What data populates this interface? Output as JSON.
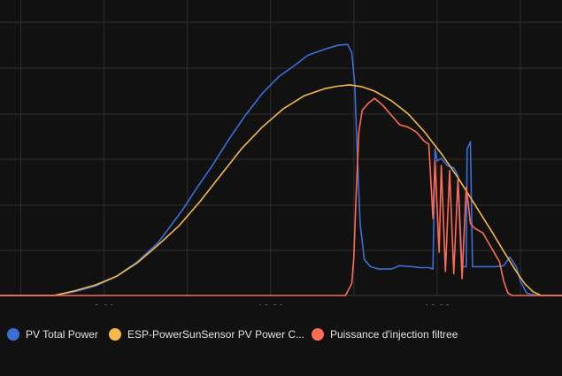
{
  "chart_data": {
    "type": "line",
    "x_ticks": [
      "8:00",
      "12:00",
      "16:00"
    ],
    "grid": true,
    "legend_position": "bottom",
    "series": [
      {
        "name": "PV Total Power",
        "color": "#3b6fd8",
        "points": [
          [
            5.5,
            0
          ],
          [
            6.8,
            0
          ],
          [
            7.3,
            0.08
          ],
          [
            7.8,
            0.2
          ],
          [
            8.3,
            0.4
          ],
          [
            8.8,
            0.7
          ],
          [
            9.3,
            1.1
          ],
          [
            9.6,
            1.45
          ],
          [
            9.9,
            1.8
          ],
          [
            10.2,
            2.2
          ],
          [
            10.6,
            2.7
          ],
          [
            11.0,
            3.25
          ],
          [
            11.4,
            3.75
          ],
          [
            11.8,
            4.2
          ],
          [
            12.2,
            4.55
          ],
          [
            12.6,
            4.8
          ],
          [
            12.9,
            5.0
          ],
          [
            13.3,
            5.12
          ],
          [
            13.6,
            5.2
          ],
          [
            13.85,
            5.22
          ],
          [
            13.95,
            5.05
          ],
          [
            14.02,
            4.4
          ],
          [
            14.08,
            3.0
          ],
          [
            14.15,
            1.5
          ],
          [
            14.25,
            0.75
          ],
          [
            14.4,
            0.6
          ],
          [
            14.6,
            0.55
          ],
          [
            14.9,
            0.55
          ],
          [
            15.1,
            0.62
          ],
          [
            15.4,
            0.6
          ],
          [
            15.6,
            0.58
          ],
          [
            15.8,
            0.58
          ],
          [
            15.9,
            0.55
          ],
          [
            15.95,
            3.05
          ],
          [
            16.0,
            2.8
          ],
          [
            16.1,
            2.85
          ],
          [
            16.25,
            2.7
          ],
          [
            16.4,
            2.65
          ],
          [
            16.5,
            2.5
          ],
          [
            16.6,
            0.6
          ],
          [
            16.7,
            0.6
          ],
          [
            16.72,
            3.05
          ],
          [
            16.78,
            3.15
          ],
          [
            16.8,
            3.2
          ],
          [
            16.85,
            0.6
          ],
          [
            17.0,
            0.6
          ],
          [
            17.2,
            0.6
          ],
          [
            17.4,
            0.6
          ],
          [
            17.6,
            0.62
          ],
          [
            17.75,
            0.8
          ],
          [
            17.9,
            0.6
          ],
          [
            18.0,
            0.3
          ],
          [
            18.15,
            0.05
          ],
          [
            18.4,
            0
          ],
          [
            19.0,
            0
          ]
        ]
      },
      {
        "name": "ESP-PowerSunSensor PV Power C...",
        "color": "#f5b849",
        "points": [
          [
            5.5,
            0
          ],
          [
            6.8,
            0
          ],
          [
            7.3,
            0.1
          ],
          [
            7.8,
            0.22
          ],
          [
            8.3,
            0.4
          ],
          [
            8.8,
            0.68
          ],
          [
            9.3,
            1.05
          ],
          [
            9.8,
            1.45
          ],
          [
            10.3,
            1.95
          ],
          [
            10.8,
            2.5
          ],
          [
            11.3,
            3.05
          ],
          [
            11.8,
            3.5
          ],
          [
            12.3,
            3.88
          ],
          [
            12.8,
            4.15
          ],
          [
            13.3,
            4.3
          ],
          [
            13.6,
            4.35
          ],
          [
            13.9,
            4.38
          ],
          [
            14.2,
            4.34
          ],
          [
            14.5,
            4.25
          ],
          [
            14.9,
            4.05
          ],
          [
            15.3,
            3.78
          ],
          [
            15.7,
            3.4
          ],
          [
            16.1,
            2.95
          ],
          [
            16.5,
            2.45
          ],
          [
            16.9,
            1.9
          ],
          [
            17.3,
            1.35
          ],
          [
            17.6,
            0.92
          ],
          [
            17.9,
            0.5
          ],
          [
            18.1,
            0.25
          ],
          [
            18.3,
            0.08
          ],
          [
            18.5,
            0
          ],
          [
            19.0,
            0
          ]
        ]
      },
      {
        "name": "Puissance d'injection filtree",
        "color": "#ff6b52",
        "points": [
          [
            5.5,
            0
          ],
          [
            13.8,
            0
          ],
          [
            13.95,
            0.25
          ],
          [
            14.0,
            0.8
          ],
          [
            14.05,
            2.0
          ],
          [
            14.12,
            3.4
          ],
          [
            14.2,
            3.85
          ],
          [
            14.35,
            4.0
          ],
          [
            14.5,
            4.1
          ],
          [
            14.7,
            3.95
          ],
          [
            14.9,
            3.75
          ],
          [
            15.1,
            3.55
          ],
          [
            15.3,
            3.5
          ],
          [
            15.5,
            3.4
          ],
          [
            15.7,
            3.2
          ],
          [
            15.8,
            3.15
          ],
          [
            15.9,
            1.6
          ],
          [
            15.95,
            2.8
          ],
          [
            16.05,
            0.9
          ],
          [
            16.1,
            2.7
          ],
          [
            16.2,
            0.5
          ],
          [
            16.3,
            2.6
          ],
          [
            16.4,
            0.45
          ],
          [
            16.5,
            2.4
          ],
          [
            16.6,
            0.35
          ],
          [
            16.7,
            2.25
          ],
          [
            16.75,
            1.9
          ],
          [
            16.8,
            1.5
          ],
          [
            16.9,
            1.4
          ],
          [
            17.1,
            1.3
          ],
          [
            17.3,
            1.0
          ],
          [
            17.4,
            0.85
          ],
          [
            17.5,
            0.7
          ],
          [
            17.6,
            0.3
          ],
          [
            17.7,
            0.05
          ],
          [
            17.8,
            0
          ],
          [
            19.0,
            0
          ]
        ]
      }
    ]
  }
}
